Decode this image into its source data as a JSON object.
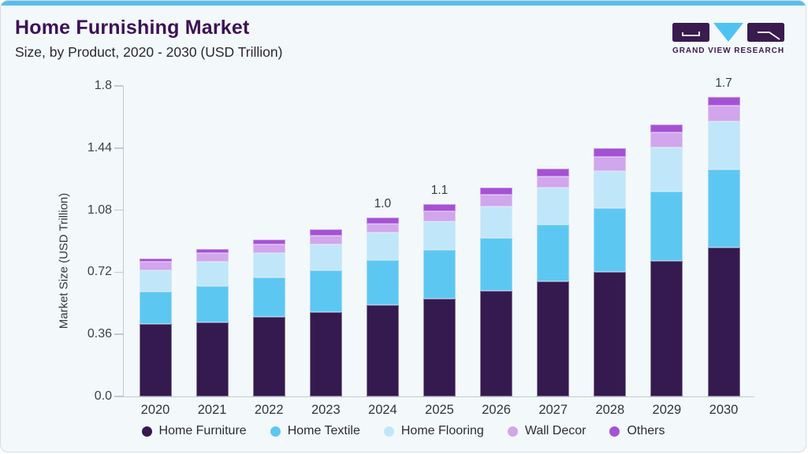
{
  "card": {
    "background": "#f3f8fb",
    "accent_strip_color": "#5bbdea",
    "border_color": "#d6dde3"
  },
  "header": {
    "title": "Home Furnishing Market",
    "subtitle": "Size, by Product, 2020 - 2030 (USD Trillion)",
    "title_color": "#3c1254"
  },
  "brand": {
    "logo_text": "GRAND VIEW RESEARCH",
    "logo_dark_color": "#3a1b4f",
    "logo_cyan_color": "#4ec3f2"
  },
  "chart_data": {
    "type": "bar",
    "stacked": true,
    "title": "Home Furnishing Market",
    "subtitle": "Size, by Product, 2020 - 2030 (USD Trillion)",
    "xlabel": "",
    "ylabel": "Market Size (USD Trillion)",
    "ylim": [
      0,
      1.8
    ],
    "ytick_labels": [
      "0.0",
      "0.36",
      "0.72",
      "1.08",
      "1.44",
      "1.8"
    ],
    "grid": false,
    "legend_position": "bottom",
    "categories": [
      "2020",
      "2021",
      "2022",
      "2023",
      "2024",
      "2025",
      "2026",
      "2027",
      "2028",
      "2029",
      "2030"
    ],
    "series": [
      {
        "name": "Home Furniture",
        "color": "#341a4e",
        "values": [
          0.42,
          0.43,
          0.46,
          0.49,
          0.53,
          0.565,
          0.61,
          0.665,
          0.72,
          0.785,
          0.865
        ]
      },
      {
        "name": "Home Textile",
        "color": "#5cc8f2",
        "values": [
          0.19,
          0.21,
          0.23,
          0.24,
          0.26,
          0.285,
          0.31,
          0.33,
          0.37,
          0.405,
          0.45
        ]
      },
      {
        "name": "Home Flooring",
        "color": "#bfe7f9",
        "values": [
          0.12,
          0.14,
          0.14,
          0.15,
          0.16,
          0.165,
          0.18,
          0.215,
          0.215,
          0.255,
          0.28
        ]
      },
      {
        "name": "Wall Decor",
        "color": "#d1a6ec",
        "values": [
          0.05,
          0.05,
          0.05,
          0.05,
          0.05,
          0.06,
          0.07,
          0.065,
          0.085,
          0.085,
          0.09
        ]
      },
      {
        "name": "Others",
        "color": "#a551d4",
        "values": [
          0.02,
          0.025,
          0.03,
          0.04,
          0.035,
          0.04,
          0.04,
          0.045,
          0.05,
          0.045,
          0.05
        ]
      }
    ],
    "bar_total_labels": [
      {
        "category": "2024",
        "label": "1.0"
      },
      {
        "category": "2025",
        "label": "1.1"
      },
      {
        "category": "2030",
        "label": "1.7"
      }
    ]
  }
}
